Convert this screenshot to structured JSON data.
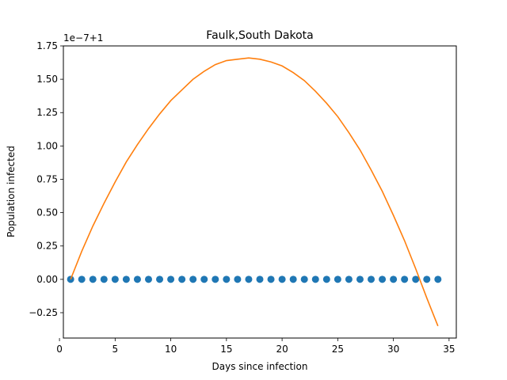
{
  "chart_data": {
    "type": "scatter",
    "title": "Faulk,South Dakota",
    "xlabel": "Days since infection",
    "ylabel": "Population infected",
    "offset_label": "1e−7+1",
    "xlim": [
      0.35,
      35.65
    ],
    "ylim": [
      -0.44,
      1.75
    ],
    "xticks": [
      0,
      5,
      10,
      15,
      20,
      25,
      30,
      35
    ],
    "yticks": [
      -0.25,
      0.0,
      0.25,
      0.5,
      0.75,
      1.0,
      1.25,
      1.5,
      1.75
    ],
    "xtick_labels": [
      "0",
      "5",
      "10",
      "15",
      "20",
      "25",
      "30",
      "35"
    ],
    "ytick_labels": [
      "−0.25",
      "0.00",
      "0.25",
      "0.50",
      "0.75",
      "1.00",
      "1.25",
      "1.50",
      "1.75"
    ],
    "grid": false,
    "series": [
      {
        "kind": "scatter",
        "color": "#1f77b4",
        "x": [
          1,
          2,
          3,
          4,
          5,
          6,
          7,
          8,
          9,
          10,
          11,
          12,
          13,
          14,
          15,
          16,
          17,
          18,
          19,
          20,
          21,
          22,
          23,
          24,
          25,
          26,
          27,
          28,
          29,
          30,
          31,
          32,
          33,
          34
        ],
        "y": [
          0,
          0,
          0,
          0,
          0,
          0,
          0,
          0,
          0,
          0,
          0,
          0,
          0,
          0,
          0,
          0,
          0,
          0,
          0,
          0,
          0,
          0,
          0,
          0,
          0,
          0,
          0,
          0,
          0,
          0,
          0,
          0,
          0,
          0
        ]
      },
      {
        "kind": "line",
        "color": "#ff7f0e",
        "x": [
          1,
          2,
          3,
          4,
          5,
          6,
          7,
          8,
          9,
          10,
          11,
          12,
          13,
          14,
          15,
          16,
          17,
          18,
          19,
          20,
          21,
          22,
          23,
          24,
          25,
          26,
          27,
          28,
          29,
          30,
          31,
          32,
          33,
          34
        ],
        "y": [
          0.0,
          0.21,
          0.4,
          0.57,
          0.73,
          0.88,
          1.01,
          1.13,
          1.24,
          1.34,
          1.42,
          1.5,
          1.56,
          1.61,
          1.64,
          1.65,
          1.66,
          1.65,
          1.63,
          1.6,
          1.55,
          1.49,
          1.41,
          1.32,
          1.22,
          1.1,
          0.97,
          0.82,
          0.66,
          0.48,
          0.29,
          0.08,
          -0.14,
          -0.35
        ]
      }
    ]
  }
}
